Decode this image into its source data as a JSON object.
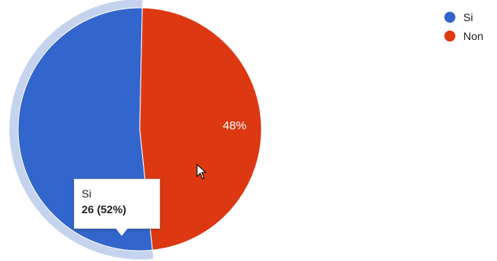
{
  "chart_data": {
    "type": "pie",
    "slices": [
      {
        "label": "Si",
        "value": 26,
        "percent": 52,
        "color": "#3366cc",
        "highlighted": true
      },
      {
        "label": "Non",
        "value": 24,
        "percent": 48,
        "color": "#dc3912",
        "slice_label": "48%"
      }
    ],
    "legend_position": "top-right",
    "highlight_ring_color": "#c6d3ee",
    "tooltip": {
      "label": "Si",
      "value_text": "26 (52%)"
    }
  }
}
